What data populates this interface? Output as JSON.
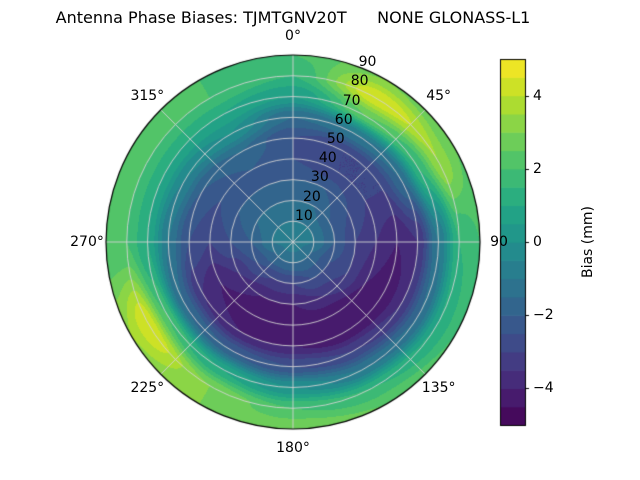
{
  "title": "Antenna Phase Biases: TJMTGNV20T      NONE GLONASS-L1",
  "chart_data": {
    "type": "heatmap",
    "subtype": "polar-filled-contour",
    "title": "Antenna Phase Biases: TJMTGNV20T      NONE GLONASS-L1",
    "azimuth_deg": [
      0,
      30,
      60,
      90,
      120,
      150,
      180,
      210,
      240,
      270,
      300,
      330,
      360
    ],
    "zenith_deg": [
      0,
      10,
      20,
      30,
      40,
      50,
      60,
      70,
      80,
      90
    ],
    "bias_mm": [
      [
        -0.5,
        -1.0,
        -1.5,
        -2.0,
        -2.5,
        -2.5,
        -1.5,
        0.5,
        1.5,
        2.0
      ],
      [
        -0.5,
        -1.0,
        -1.5,
        -2.0,
        -3.0,
        -3.0,
        -1.0,
        2.5,
        4.5,
        3.0
      ],
      [
        -0.5,
        -1.0,
        -2.0,
        -2.5,
        -3.0,
        -3.0,
        -1.5,
        1.5,
        3.5,
        2.5
      ],
      [
        -0.5,
        -1.0,
        -2.0,
        -3.0,
        -3.5,
        -4.0,
        -3.5,
        -1.0,
        1.5,
        2.0
      ],
      [
        -0.5,
        -1.5,
        -2.5,
        -3.0,
        -4.0,
        -4.5,
        -3.5,
        -1.5,
        1.0,
        2.0
      ],
      [
        -0.5,
        -1.5,
        -2.5,
        -3.5,
        -4.5,
        -4.5,
        -3.0,
        -1.0,
        1.5,
        2.5
      ],
      [
        -0.5,
        -1.5,
        -3.0,
        -4.0,
        -4.5,
        -4.0,
        -2.5,
        0.0,
        2.0,
        3.0
      ],
      [
        -0.5,
        -1.5,
        -3.0,
        -4.0,
        -4.5,
        -4.0,
        -2.0,
        1.0,
        3.0,
        3.0
      ],
      [
        -0.5,
        -1.5,
        -2.5,
        -3.5,
        -4.0,
        -3.5,
        -1.5,
        2.0,
        4.5,
        3.5
      ],
      [
        -0.5,
        -1.0,
        -2.0,
        -2.5,
        -3.0,
        -2.5,
        -1.0,
        1.0,
        2.0,
        2.0
      ],
      [
        -0.5,
        -1.0,
        -1.5,
        -2.0,
        -2.5,
        -2.0,
        -0.5,
        1.0,
        2.0,
        2.0
      ],
      [
        -0.5,
        -1.0,
        -1.5,
        -2.0,
        -2.0,
        -1.5,
        0.0,
        1.0,
        2.0,
        2.0
      ],
      [
        -0.5,
        -1.0,
        -1.5,
        -2.0,
        -2.5,
        -2.5,
        -1.5,
        0.5,
        1.5,
        2.0
      ]
    ],
    "contour_level_step_mm": 0.5,
    "value_range_mm": [
      -5,
      5
    ],
    "colormap": "viridis",
    "colormap_stops": [
      [
        0.0,
        "#440154"
      ],
      [
        0.1,
        "#482475"
      ],
      [
        0.2,
        "#414487"
      ],
      [
        0.3,
        "#355f8d"
      ],
      [
        0.4,
        "#2a788e"
      ],
      [
        0.5,
        "#21918c"
      ],
      [
        0.6,
        "#22a884"
      ],
      [
        0.7,
        "#44bf70"
      ],
      [
        0.8,
        "#7ad151"
      ],
      [
        0.9,
        "#bddf26"
      ],
      [
        1.0,
        "#fde725"
      ]
    ],
    "grid_color": "#d4d4d4",
    "theta_ticks": [
      {
        "angle": 0,
        "label": "0°"
      },
      {
        "angle": 45,
        "label": "45°"
      },
      {
        "angle": 90,
        "label": "90"
      },
      {
        "angle": 135,
        "label": "135°"
      },
      {
        "angle": 180,
        "label": "180°"
      },
      {
        "angle": 225,
        "label": "225°"
      },
      {
        "angle": 270,
        "label": "270°"
      },
      {
        "angle": 315,
        "label": "315°"
      }
    ],
    "r_ticks": [
      {
        "r": 10,
        "label": "10"
      },
      {
        "r": 20,
        "label": "20"
      },
      {
        "r": 30,
        "label": "30"
      },
      {
        "r": 40,
        "label": "40"
      },
      {
        "r": 50,
        "label": "50"
      },
      {
        "r": 60,
        "label": "60"
      },
      {
        "r": 70,
        "label": "70"
      },
      {
        "r": 80,
        "label": "80"
      },
      {
        "r": 90,
        "label": "90"
      }
    ],
    "r_label_azimuth_deg": 22.5,
    "colorbar": {
      "label": "Bias (mm)",
      "ticks": [
        {
          "value": 4,
          "label": "4"
        },
        {
          "value": 2,
          "label": "2"
        },
        {
          "value": 0,
          "label": "0"
        },
        {
          "value": -2,
          "label": "−2"
        },
        {
          "value": -4,
          "label": "−4"
        }
      ]
    }
  }
}
